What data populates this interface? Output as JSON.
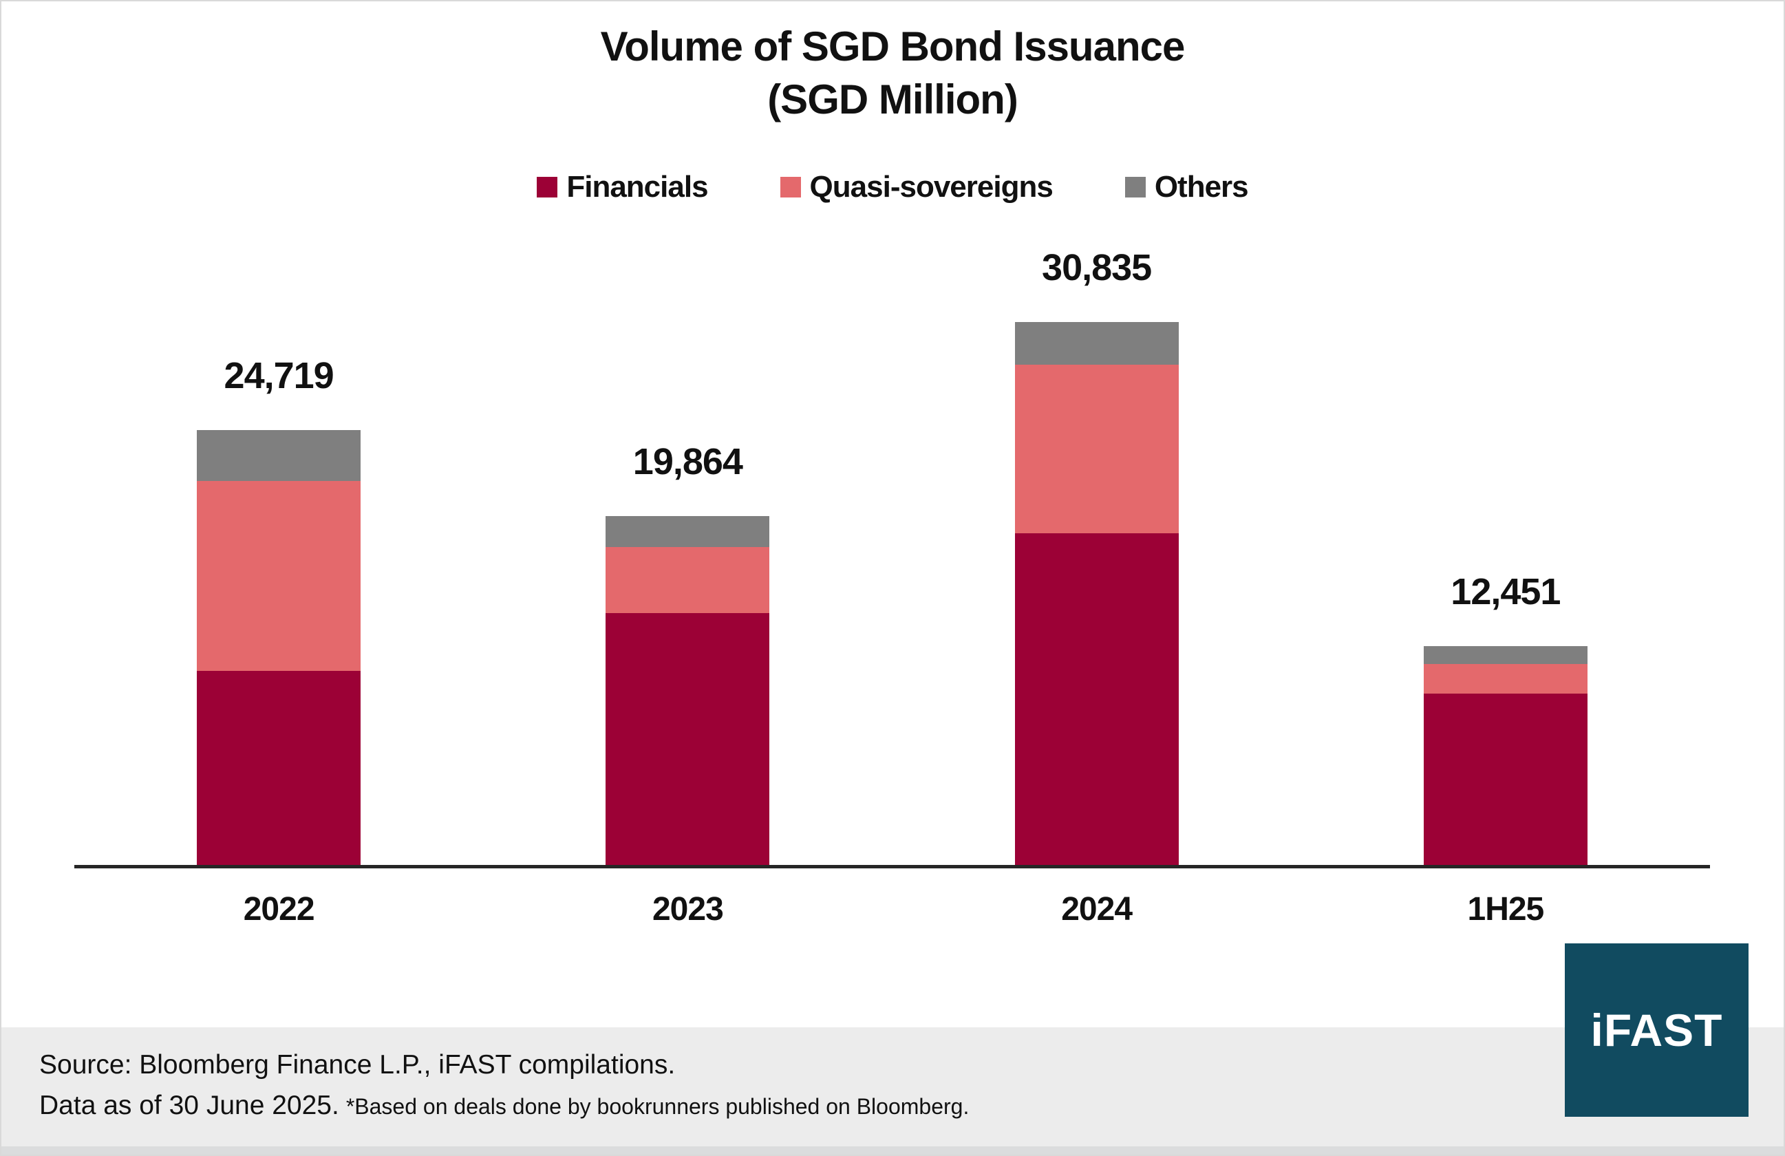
{
  "chart_data": {
    "type": "bar",
    "stacked": true,
    "title": "Volume of SGD Bond Issuance",
    "subtitle": "(SGD Million)",
    "categories": [
      "2022",
      "2023",
      "2024",
      "1H25"
    ],
    "series": [
      {
        "name": "Financials",
        "color": "#9C0136",
        "values": [
          11030,
          14330,
          18840,
          9745
        ]
      },
      {
        "name": "Quasi-sovereigns",
        "color": "#E4696C",
        "values": [
          10795,
          3755,
          9575,
          1685
        ]
      },
      {
        "name": "Others",
        "color": "#7F7F7F",
        "values": [
          2894,
          1779,
          2420,
          1021
        ]
      }
    ],
    "totals": [
      24719,
      19864,
      30835,
      12451
    ],
    "totals_formatted": [
      "24,719",
      "19,864",
      "30,835",
      "12,451"
    ],
    "legend_position": "top",
    "value_axis_visible": false,
    "gridlines": false,
    "axis_color": "#262626"
  },
  "footer": {
    "source_line": "Source: Bloomberg Finance L.P., iFAST compilations.",
    "data_as_of": "Data as of 30 June 2025.",
    "footnote": "*Based on deals done by bookrunners published on Bloomberg."
  },
  "logo": {
    "text": "iFAST",
    "color": "#114B60"
  }
}
